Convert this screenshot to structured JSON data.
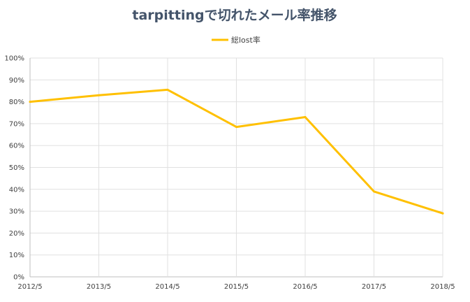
{
  "chart_data": {
    "type": "line",
    "title": "tarpittingで切れたメール率推移",
    "xlabel": "",
    "ylabel": "",
    "categories": [
      "2012/5",
      "2013/5",
      "2014/5",
      "2015/5",
      "2016/5",
      "2017/5",
      "2018/5"
    ],
    "series": [
      {
        "name": "総lost率",
        "color": "#ffc000",
        "values": [
          80,
          83,
          85.5,
          68.5,
          73,
          39,
          29
        ]
      }
    ],
    "ylim": [
      0,
      100
    ],
    "yticks": [
      "0%",
      "10%",
      "20%",
      "30%",
      "40%",
      "50%",
      "60%",
      "70%",
      "80%",
      "90%",
      "100%"
    ],
    "grid": true,
    "legend_position": "top"
  }
}
